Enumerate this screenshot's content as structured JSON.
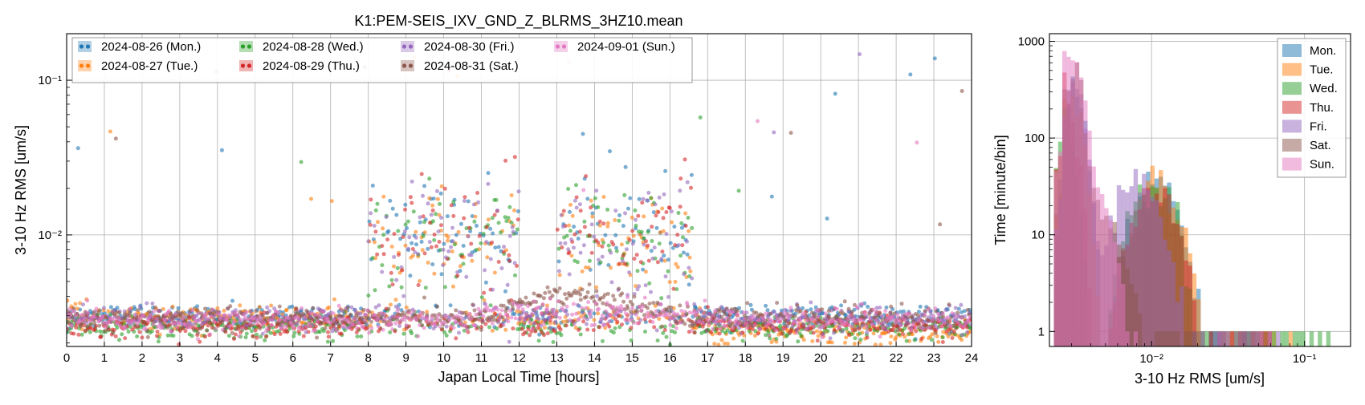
{
  "chart_data": [
    {
      "type": "scatter",
      "title": "K1:PEM-SEIS_IXV_GND_Z_BLRMS_3HZ10.mean",
      "xlabel": "Japan Local Time [hours]",
      "ylabel": "3-10 Hz RMS [um/s]",
      "xlim": [
        0,
        24
      ],
      "ylim": [
        0.0019,
        0.2
      ],
      "yscale": "log",
      "grid": true,
      "legend_position": "top-left",
      "x_tick_labels": [
        "0",
        "1",
        "2",
        "3",
        "4",
        "5",
        "6",
        "7",
        "8",
        "9",
        "10",
        "11",
        "12",
        "13",
        "14",
        "15",
        "16",
        "17",
        "18",
        "19",
        "20",
        "21",
        "22",
        "23",
        "24"
      ],
      "y_tick_labels": [
        {
          "value": 0.01,
          "label": "10⁻²"
        },
        {
          "value": 0.1,
          "label": "10⁻¹"
        }
      ],
      "series": [
        {
          "name": "2024-08-26 (Mon.)",
          "color": "#1f77b4",
          "baseline_quiet": 0.003,
          "daytime_level": 0.01
        },
        {
          "name": "2024-08-27 (Tue.)",
          "color": "#ff7f0e",
          "baseline_quiet": 0.0029,
          "daytime_level": 0.0095
        },
        {
          "name": "2024-08-28 (Wed.)",
          "color": "#2ca02c",
          "baseline_quiet": 0.0025,
          "daytime_level": 0.009
        },
        {
          "name": "2024-08-29 (Thu.)",
          "color": "#d62728",
          "baseline_quiet": 0.0026,
          "daytime_level": 0.0095
        },
        {
          "name": "2024-08-30 (Fri.)",
          "color": "#9467bd",
          "baseline_quiet": 0.0029,
          "daytime_level": 0.009
        },
        {
          "name": "2024-08-31 (Sat.)",
          "color": "#8c564b",
          "baseline_quiet": 0.0029,
          "daytime_level": 0.0042
        },
        {
          "name": "2024-09-01 (Sun.)",
          "color": "#e377c2",
          "baseline_quiet": 0.0028,
          "daytime_level": 0.0031
        }
      ],
      "active_periods_hours": [
        [
          8,
          12
        ],
        [
          13,
          15.5
        ],
        [
          15.5,
          16.6
        ]
      ]
    },
    {
      "type": "bar",
      "subtype": "histogram",
      "xlabel": "3-10 Hz RMS [um/s]",
      "ylabel": "Time [minute/bin]",
      "xscale": "log",
      "yscale": "log",
      "xlim": [
        0.00215,
        0.2
      ],
      "ylim": [
        0.7,
        1200
      ],
      "grid": true,
      "legend_position": "top-right",
      "x_tick_labels": [
        {
          "value": 0.01,
          "label": "10⁻²"
        },
        {
          "value": 0.1,
          "label": "10⁻¹"
        }
      ],
      "y_tick_labels": [
        {
          "value": 1,
          "label": "1"
        },
        {
          "value": 10,
          "label": "10"
        },
        {
          "value": 100,
          "label": "100"
        },
        {
          "value": 1000,
          "label": "1000"
        }
      ],
      "series": [
        {
          "name": "Mon.",
          "color": "#1f77b4",
          "peak_x": 0.0031,
          "peak": 360,
          "hump_x": 0.0105,
          "hump": 38,
          "max_x": 0.052
        },
        {
          "name": "Tue.",
          "color": "#ff7f0e",
          "peak_x": 0.003,
          "peak": 300,
          "hump_x": 0.011,
          "hump": 35,
          "max_x": 0.085
        },
        {
          "name": "Wed.",
          "color": "#2ca02c",
          "peak_x": 0.0026,
          "peak": 260,
          "hump_x": 0.01,
          "hump": 32,
          "max_x": 0.17
        },
        {
          "name": "Thu.",
          "color": "#d62728",
          "peak_x": 0.0027,
          "peak": 320,
          "hump_x": 0.0105,
          "hump": 30,
          "max_x": 0.061
        },
        {
          "name": "Fri.",
          "color": "#9467bd",
          "peak_x": 0.0031,
          "peak": 380,
          "hump_x": 0.008,
          "hump": 40,
          "max_x": 0.072
        },
        {
          "name": "Sat.",
          "color": "#8c564b",
          "peak_x": 0.0031,
          "peak": 380,
          "hump_x": 0.0045,
          "hump": 20,
          "max_x": 0.026
        },
        {
          "name": "Sun.",
          "color": "#e377c2",
          "peak_x": 0.003,
          "peak": 850,
          "hump_x": 0.0034,
          "hump": 60,
          "max_x": 0.0085
        }
      ]
    }
  ]
}
